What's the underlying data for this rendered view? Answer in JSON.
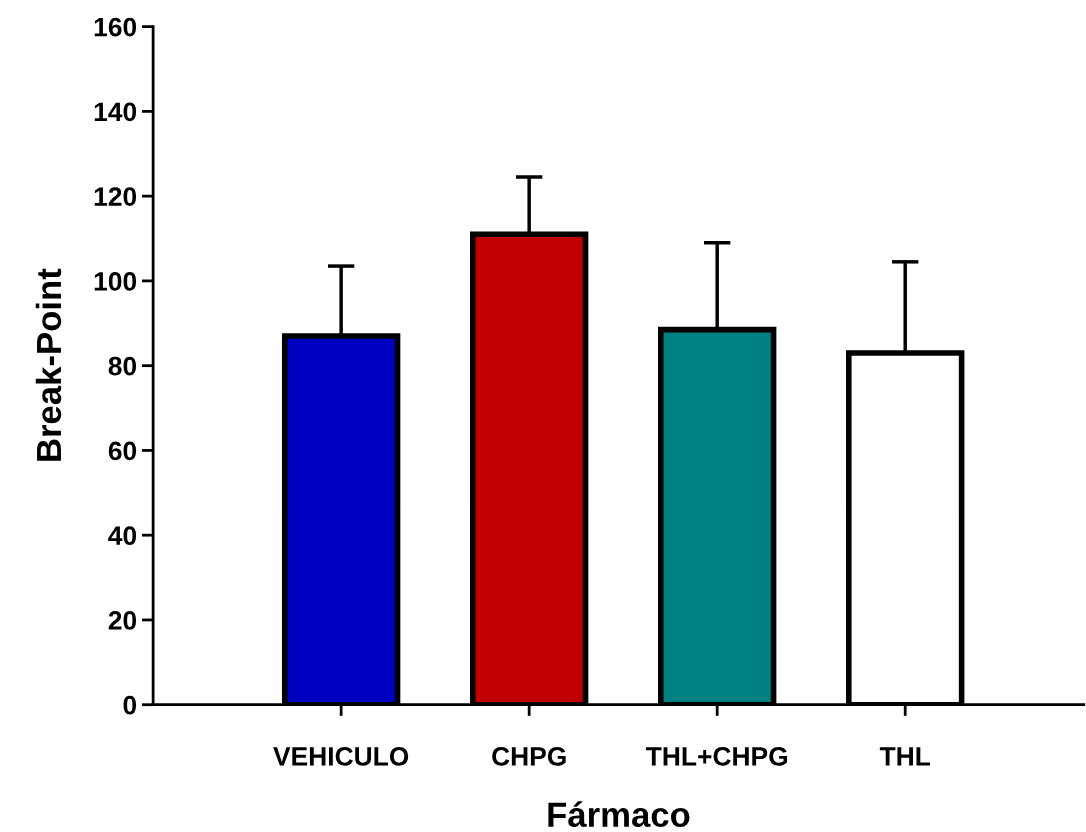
{
  "chart_data": {
    "type": "bar",
    "xlabel": "Fármaco",
    "ylabel": "Break-Point",
    "categories": [
      "VEHICULO",
      "CHPG",
      "THL+CHPG",
      "THL"
    ],
    "values": [
      87,
      111,
      88.5,
      83
    ],
    "colors": [
      "#0000c0",
      "#c00000",
      "#008080",
      "#ffffff"
    ],
    "errors": [
      [
        87,
        103.5
      ],
      [
        111,
        124.5
      ],
      [
        88.5,
        109
      ],
      [
        83,
        104.5
      ]
    ],
    "ylim": [
      0,
      160
    ],
    "yticks": [
      0,
      20,
      40,
      60,
      80,
      100,
      120,
      140,
      160
    ],
    "grid": false,
    "legend": false
  }
}
